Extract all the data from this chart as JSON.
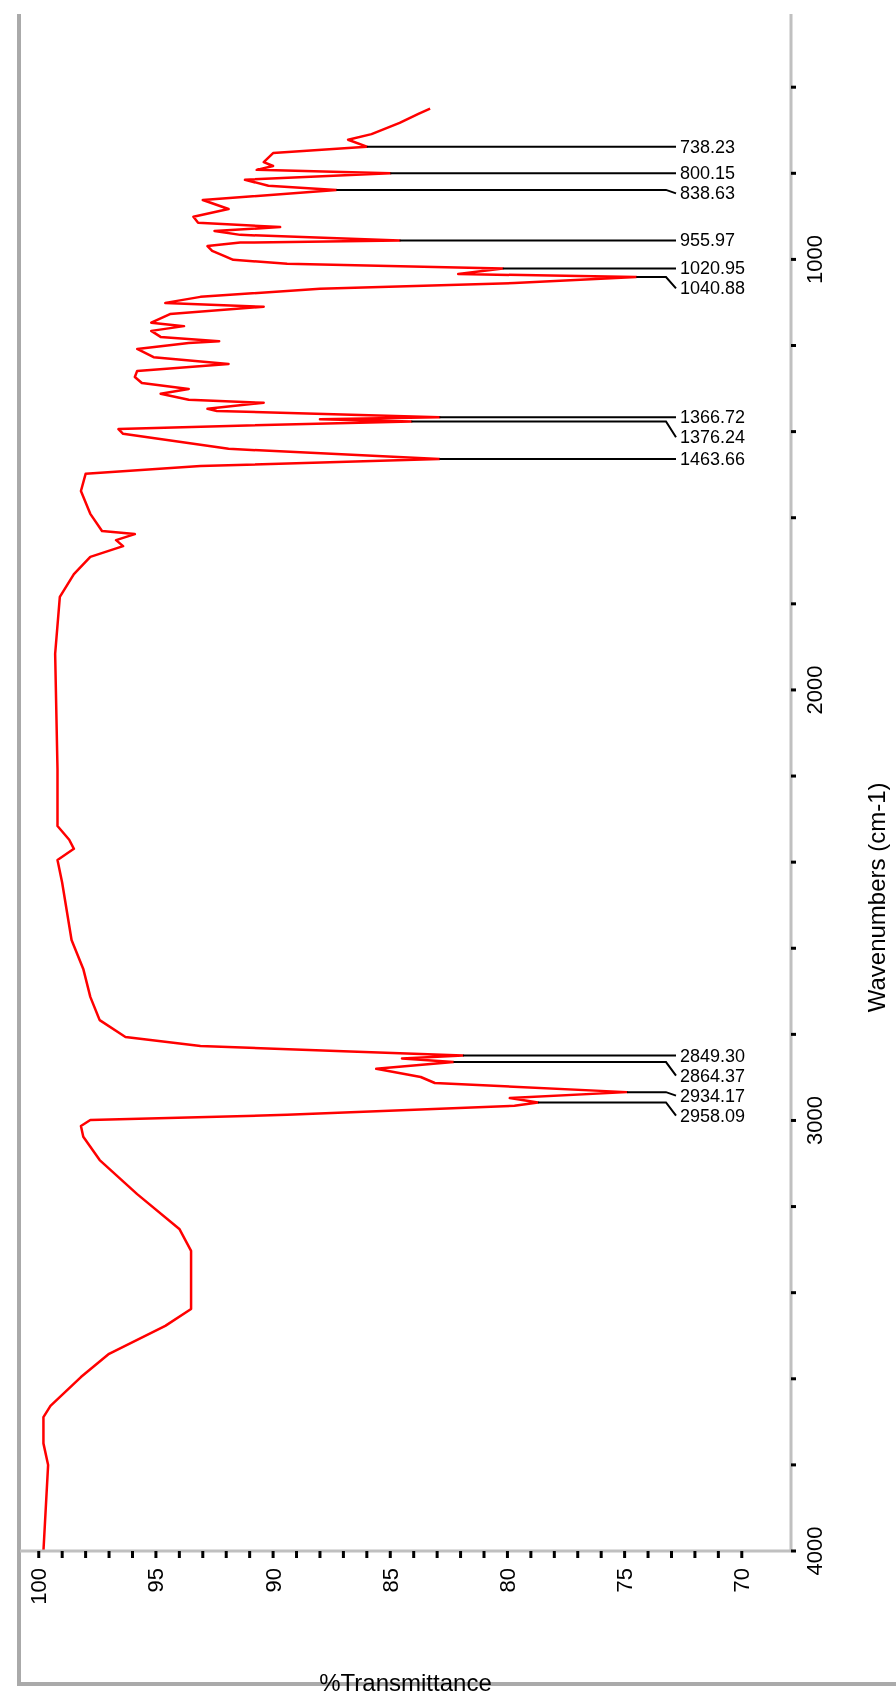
{
  "chart_data": {
    "type": "line",
    "orientation": "horizontal",
    "xlabel": "%Transmittance",
    "ylabel": "Wavenumbers (cm-1)",
    "xlim": [
      100.8,
      67.9
    ],
    "xticks": [
      100,
      {
        "value": 99,
        "label": null
      },
      {
        "value": 98,
        "label": null
      },
      {
        "value": 97,
        "label": null
      },
      {
        "value": 96,
        "label": null
      },
      95,
      {
        "value": 94,
        "label": null
      },
      {
        "value": 93,
        "label": null
      },
      {
        "value": 92,
        "label": null
      },
      {
        "value": 91,
        "label": null
      },
      90,
      {
        "value": 89,
        "label": null
      },
      {
        "value": 88,
        "label": null
      },
      {
        "value": 87,
        "label": null
      },
      {
        "value": 86,
        "label": null
      },
      85,
      {
        "value": 84,
        "label": null
      },
      {
        "value": 83,
        "label": null
      },
      {
        "value": 82,
        "label": null
      },
      {
        "value": 81,
        "label": null
      },
      80,
      {
        "value": 79,
        "label": null
      },
      {
        "value": 78,
        "label": null
      },
      {
        "value": 77,
        "label": null
      },
      {
        "value": 76,
        "label": null
      },
      75,
      {
        "value": 74,
        "label": null
      },
      {
        "value": 73,
        "label": null
      },
      {
        "value": 72,
        "label": null
      },
      {
        "value": 71,
        "label": null
      },
      70
    ],
    "ylim": [
      4000,
      430
    ],
    "yticks": [
      4000,
      {
        "value": 3800,
        "label": null
      },
      {
        "value": 3600,
        "label": null
      },
      {
        "value": 3400,
        "label": null
      },
      {
        "value": 3200,
        "label": null
      },
      3000,
      {
        "value": 2800,
        "label": null
      },
      {
        "value": 2600,
        "label": null
      },
      {
        "value": 2400,
        "label": null
      },
      {
        "value": 2200,
        "label": null
      },
      2000,
      {
        "value": 1800,
        "label": null
      },
      {
        "value": 1600,
        "label": null
      },
      {
        "value": 1400,
        "label": null
      },
      {
        "value": 1200,
        "label": null
      },
      1000,
      {
        "value": 800,
        "label": null
      },
      {
        "value": 600,
        "label": null
      }
    ],
    "x": [
      4000,
      3800,
      3750,
      3689,
      3663,
      3596,
      3542,
      3477,
      3438,
      3303,
      3252,
      3171,
      3092,
      3038,
      3013,
      2999,
      2987,
      2966,
      2958.09,
      2948,
      2934.17,
      2913,
      2899,
      2880,
      2864.37,
      2856,
      2849.3,
      2839,
      2827,
      2806,
      2767,
      2713,
      2648,
      2581,
      2448,
      2395,
      2369,
      2348,
      2316,
      2184,
      1916,
      1784,
      1731,
      1691,
      1666,
      1652,
      1638,
      1631,
      1591,
      1538,
      1498,
      1480,
      1463.66,
      1440,
      1405,
      1394,
      1387,
      1376.24,
      1371,
      1366.72,
      1352,
      1347,
      1333,
      1326,
      1312,
      1301,
      1287,
      1273,
      1259,
      1243,
      1227,
      1208,
      1194,
      1190,
      1180,
      1166,
      1155,
      1147,
      1127,
      1110,
      1101,
      1087,
      1068,
      1055,
      1040.88,
      1034,
      1020.95,
      1010,
      1001,
      980,
      969,
      961,
      955.97,
      943,
      934,
      925,
      915,
      901,
      883,
      862,
      838.63,
      829,
      815,
      800.15,
      792,
      783,
      774,
      753,
      738.23,
      722,
      709,
      683,
      662,
      650
    ],
    "values": [
      99.8,
      99.6,
      99.8,
      99.8,
      99.5,
      98.2,
      97.0,
      94.6,
      93.5,
      93.5,
      94.0,
      95.8,
      97.4,
      98.1,
      98.2,
      97.8,
      89.4,
      79.7,
      78.7,
      79.9,
      74.9,
      83.1,
      83.7,
      85.6,
      82.3,
      84.5,
      81.9,
      87.0,
      93.1,
      96.3,
      97.4,
      97.8,
      98.1,
      98.6,
      99.0,
      99.2,
      98.5,
      98.7,
      99.2,
      99.2,
      99.3,
      99.1,
      98.5,
      97.8,
      96.4,
      96.7,
      95.9,
      97.3,
      97.8,
      98.2,
      98.0,
      93.1,
      82.9,
      91.9,
      96.4,
      96.6,
      91.9,
      84.1,
      88.0,
      82.9,
      92.4,
      92.8,
      90.4,
      93.6,
      94.8,
      93.6,
      95.6,
      95.9,
      95.8,
      91.9,
      95.1,
      95.8,
      93.6,
      92.3,
      94.8,
      95.2,
      93.8,
      95.2,
      94.4,
      90.4,
      94.6,
      93.1,
      88.0,
      79.7,
      74.5,
      82.1,
      80.2,
      89.4,
      91.7,
      92.6,
      92.8,
      91.4,
      84.6,
      91.4,
      92.5,
      89.7,
      93.2,
      93.4,
      91.9,
      93.0,
      87.3,
      90.2,
      91.2,
      85.0,
      90.7,
      90.0,
      90.4,
      90.0,
      86.0,
      86.8,
      85.8,
      84.6,
      83.8,
      83.3
    ],
    "color": "#ff0000",
    "annotations": [
      {
        "text": "2958.09",
        "x": 78.7,
        "y": 2958.09
      },
      {
        "text": "2934.17",
        "x": 74.9,
        "y": 2934.17
      },
      {
        "text": "2864.37",
        "x": 82.3,
        "y": 2864.37
      },
      {
        "text": "2849.30",
        "x": 81.9,
        "y": 2849.3
      },
      {
        "text": "1463.66",
        "x": 82.9,
        "y": 1463.66
      },
      {
        "text": "1376.24",
        "x": 84.1,
        "y": 1376.24
      },
      {
        "text": "1366.72",
        "x": 82.9,
        "y": 1366.72
      },
      {
        "text": "1040.88",
        "x": 74.5,
        "y": 1040.88
      },
      {
        "text": "1020.95",
        "x": 80.2,
        "y": 1020.95
      },
      {
        "text": "955.97",
        "x": 84.6,
        "y": 955.97
      },
      {
        "text": "838.63",
        "x": 87.3,
        "y": 838.63
      },
      {
        "text": "800.15",
        "x": 85.0,
        "y": 800.15
      },
      {
        "text": "738.23",
        "x": 86.0,
        "y": 738.23
      }
    ]
  }
}
